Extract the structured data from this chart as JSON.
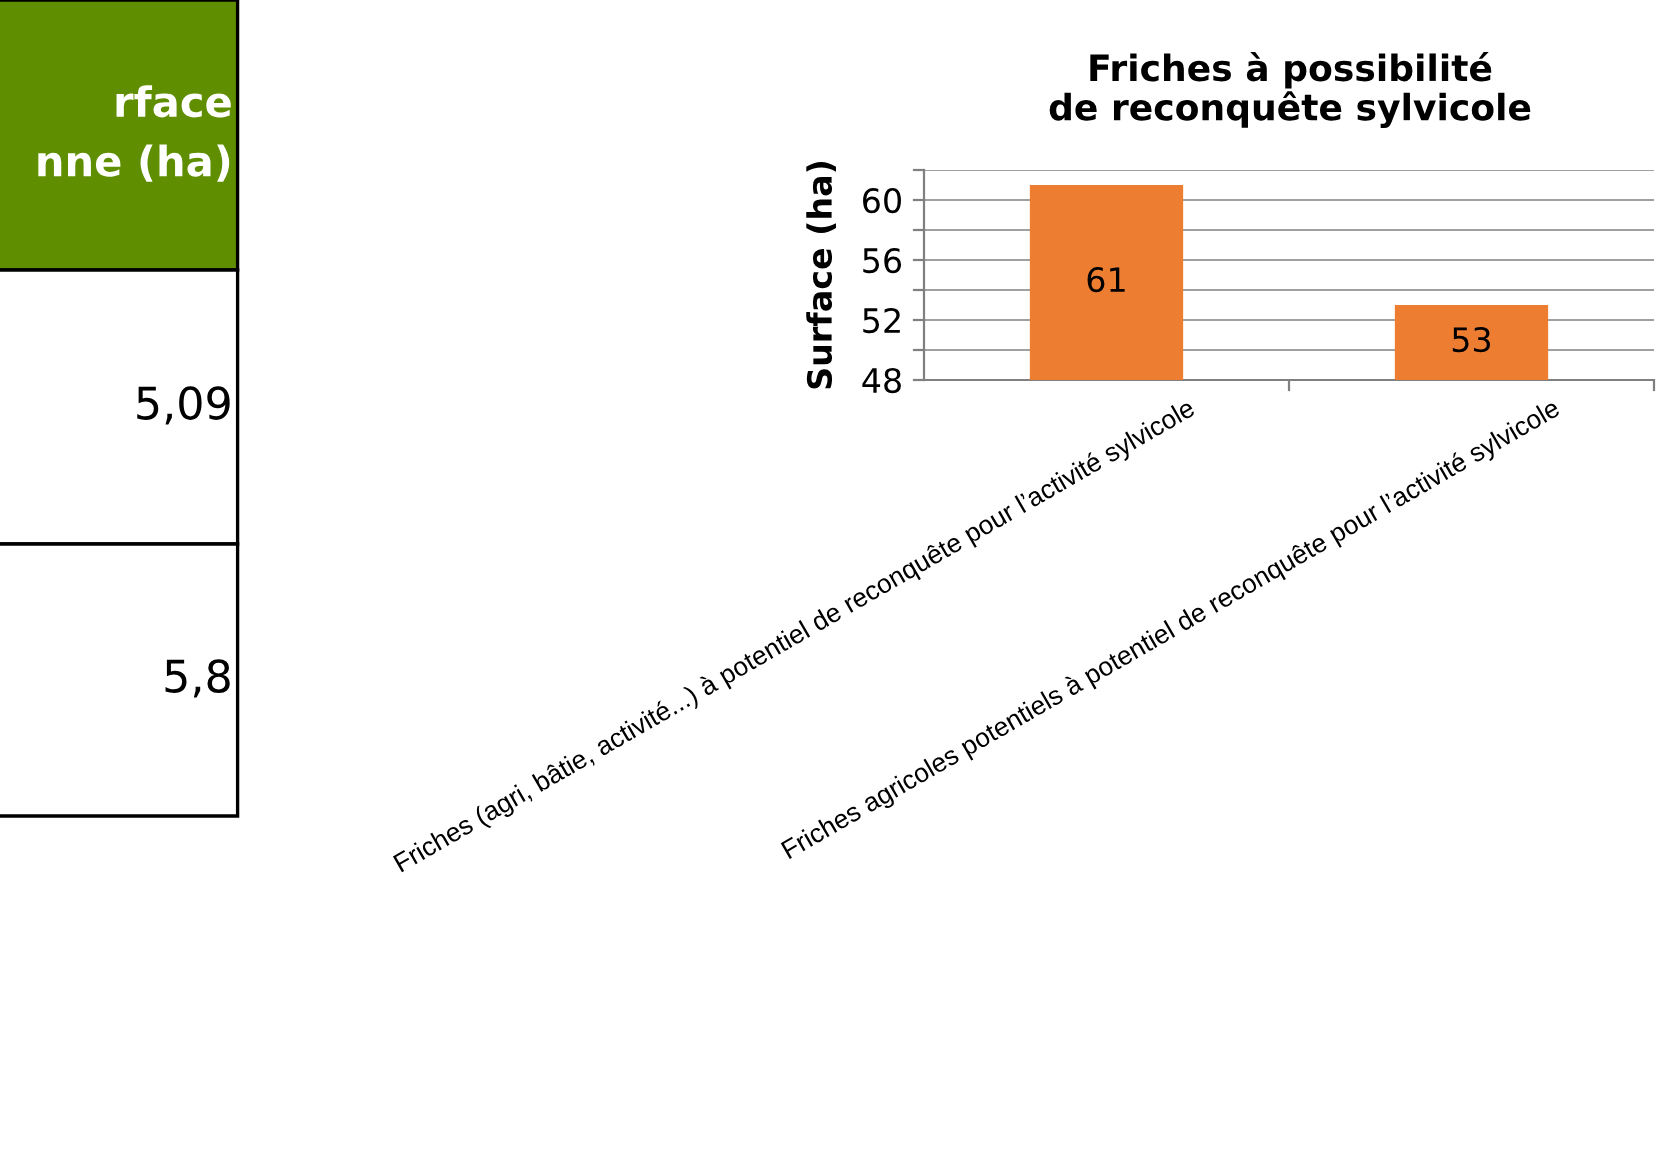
{
  "chart_data": [
    {
      "type": "other",
      "annotations": [
        "rface\nnne (ha)",
        "5,09",
        "5,8"
      ]
    },
    {
      "type": "bar",
      "title": "Friches à possibilité\nde reconquête sylvicole",
      "ylabel": "Surface (ha)",
      "categories": [
        "Friches (agri, bâtie, activité...) à potentiel de reconquête pour l’activité sylvicole",
        "Friches agricoles potentiels à potentiel de reconquête pour l’activité sylvicole"
      ],
      "values": [
        61,
        53
      ],
      "color": "#ed7d31",
      "data_labels": true,
      "ylim": [
        48,
        62
      ],
      "yticks": [
        48,
        {
          "value": 50,
          "label": null
        },
        52,
        {
          "value": 54,
          "label": null
        },
        56,
        {
          "value": 58,
          "label": null
        },
        60,
        {
          "value": 62,
          "label": null
        }
      ],
      "grid": "y"
    }
  ]
}
